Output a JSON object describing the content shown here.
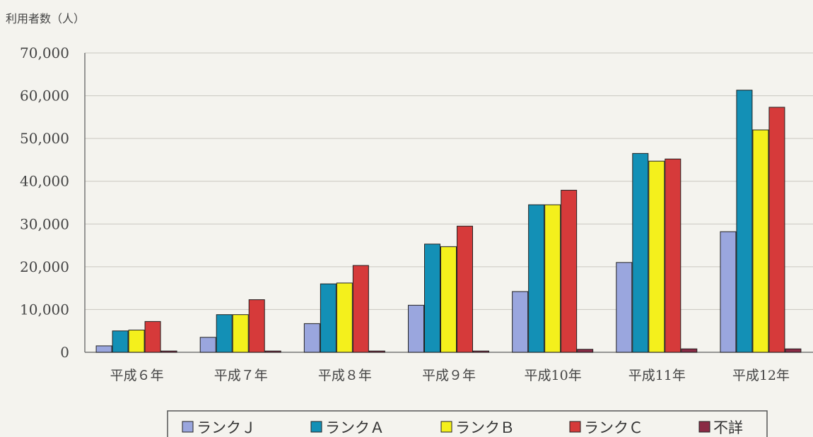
{
  "chart_data": {
    "type": "bar",
    "ylabel": "利用者数（人）",
    "categories": [
      "平成６年",
      "平成７年",
      "平成８年",
      "平成９年",
      "平成10年",
      "平成11年",
      "平成12年"
    ],
    "ylim": [
      0,
      70000
    ],
    "yticks": [
      "0",
      "10,000",
      "20,000",
      "30,000",
      "40,000",
      "50,000",
      "60,000",
      "70,000"
    ],
    "grid": true,
    "legend_position": "bottom",
    "series": [
      {
        "name": "ランクＪ",
        "color": "#9aa6de",
        "values": [
          1500,
          3500,
          6700,
          11000,
          14200,
          21000,
          28200
        ]
      },
      {
        "name": "ランクＡ",
        "color": "#1390b6",
        "values": [
          5000,
          8800,
          16000,
          25300,
          34500,
          46500,
          61300
        ]
      },
      {
        "name": "ランクＢ",
        "color": "#f4f01c",
        "values": [
          5200,
          8800,
          16200,
          24700,
          34500,
          44700,
          52000
        ]
      },
      {
        "name": "ランクＣ",
        "color": "#d63a3a",
        "values": [
          7200,
          12300,
          20300,
          29500,
          37900,
          45200,
          57300
        ]
      },
      {
        "name": "不詳",
        "color": "#8a2a45",
        "values": [
          300,
          300,
          300,
          300,
          700,
          800,
          800
        ]
      }
    ]
  }
}
